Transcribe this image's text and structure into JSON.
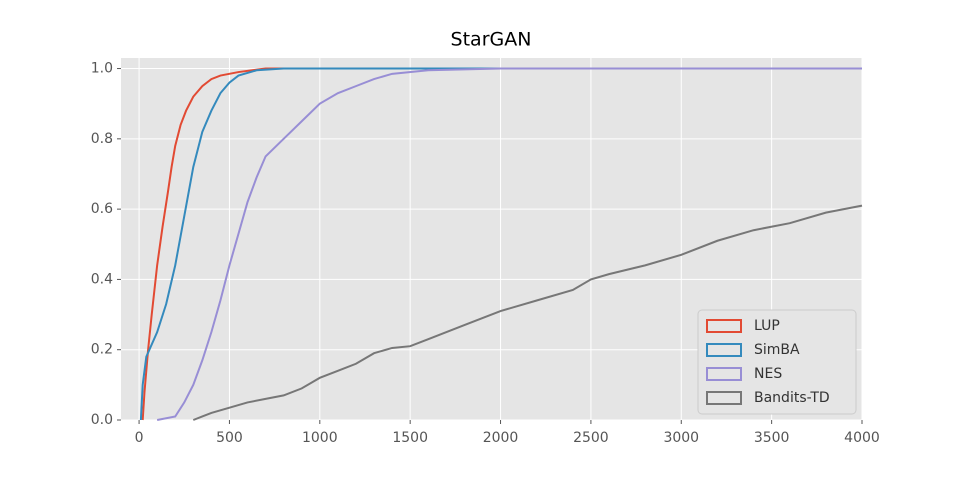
{
  "chart_data": {
    "type": "line",
    "title": "StarGAN",
    "xlim": [
      -100,
      4000
    ],
    "ylim": [
      0,
      1.03
    ],
    "xticks": [
      0,
      500,
      1000,
      1500,
      2000,
      2500,
      3000,
      3500,
      4000
    ],
    "yticks": [
      {
        "value": 0,
        "label": "0.0"
      },
      0.2,
      0.4,
      0.6,
      0.8,
      {
        "value": 1,
        "label": "1.0"
      }
    ],
    "grid": true,
    "legend": "lower right",
    "series": [
      {
        "name": "LUP",
        "color": "#E24A33",
        "x": [
          20,
          30,
          50,
          70,
          100,
          130,
          160,
          180,
          200,
          230,
          260,
          300,
          350,
          400,
          450,
          550,
          700,
          4000
        ],
        "values": [
          0,
          0.08,
          0.2,
          0.3,
          0.44,
          0.55,
          0.65,
          0.72,
          0.78,
          0.84,
          0.88,
          0.92,
          0.95,
          0.97,
          0.98,
          0.99,
          1.0,
          1.0
        ]
      },
      {
        "name": "SimBA",
        "color": "#348ABD",
        "x": [
          10,
          20,
          40,
          100,
          150,
          200,
          250,
          300,
          350,
          400,
          450,
          500,
          550,
          650,
          800,
          4000
        ],
        "values": [
          0,
          0.1,
          0.18,
          0.25,
          0.33,
          0.44,
          0.58,
          0.72,
          0.82,
          0.88,
          0.93,
          0.96,
          0.98,
          0.995,
          1.0,
          1.0
        ]
      },
      {
        "name": "NES",
        "color": "#988ED5",
        "x": [
          100,
          200,
          250,
          300,
          350,
          400,
          450,
          500,
          550,
          600,
          650,
          700,
          800,
          900,
          1000,
          1100,
          1200,
          1300,
          1400,
          1600,
          2000,
          4000
        ],
        "values": [
          0,
          0.01,
          0.05,
          0.1,
          0.17,
          0.25,
          0.34,
          0.44,
          0.53,
          0.62,
          0.69,
          0.75,
          0.8,
          0.85,
          0.9,
          0.93,
          0.95,
          0.97,
          0.985,
          0.995,
          1.0,
          1.0
        ]
      },
      {
        "name": "Bandits-TD",
        "color": "#777777",
        "x": [
          300,
          350,
          400,
          500,
          600,
          700,
          800,
          900,
          1000,
          1100,
          1200,
          1300,
          1400,
          1500,
          1600,
          1800,
          1900,
          2000,
          2200,
          2400,
          2500,
          2600,
          2800,
          3000,
          3200,
          3400,
          3600,
          3800,
          4000
        ],
        "values": [
          0,
          0.01,
          0.02,
          0.035,
          0.05,
          0.06,
          0.07,
          0.09,
          0.12,
          0.14,
          0.16,
          0.19,
          0.205,
          0.21,
          0.23,
          0.27,
          0.29,
          0.31,
          0.34,
          0.37,
          0.4,
          0.415,
          0.44,
          0.47,
          0.51,
          0.54,
          0.56,
          0.59,
          0.61
        ]
      }
    ]
  }
}
